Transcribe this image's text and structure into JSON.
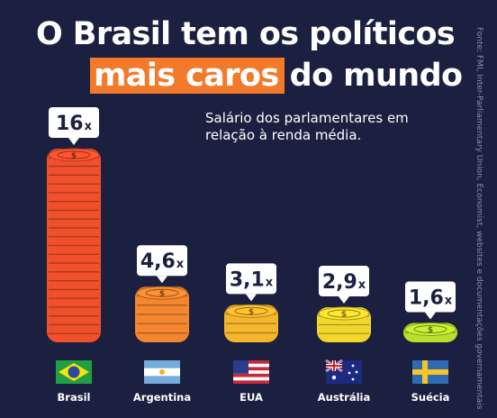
{
  "header": {
    "title_line1": "O Brasil tem os políticos",
    "title_highlight": "mais caros",
    "title_rest": "do mundo",
    "subtitle": "Salário dos parlamentares em relação à renda média.",
    "source": "Fonte: FMI, Inter-Parliamentary Union, Economist, websites e documentações governamentais"
  },
  "chart_data": {
    "type": "bar",
    "title": "O Brasil tem os políticos mais caros do mundo",
    "subtitle": "Salário dos parlamentares em relação à renda média.",
    "categories": [
      "Brasil",
      "Argentina",
      "EUA",
      "Austrália",
      "Suécia"
    ],
    "values": [
      16,
      4.6,
      3.1,
      2.9,
      1.6
    ],
    "value_labels": [
      "16",
      "4,6",
      "3,1",
      "2,9",
      "1,6"
    ],
    "unit": "x",
    "bar_style": "stacked-coins",
    "colors": [
      "#f0502c",
      "#f3862e",
      "#f5b52c",
      "#f2d62c",
      "#b7e02f"
    ],
    "flags": [
      "brazil-flag-icon",
      "argentina-flag-icon",
      "usa-flag-icon",
      "australia-flag-icon",
      "sweden-flag-icon"
    ],
    "legend": "none",
    "grid": false
  }
}
